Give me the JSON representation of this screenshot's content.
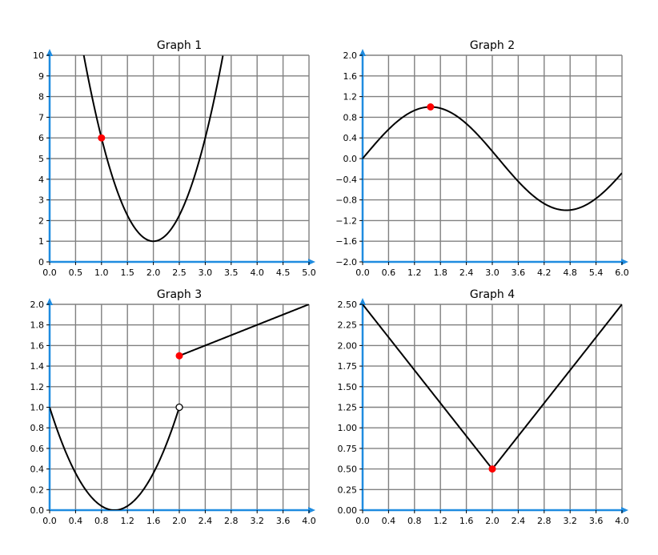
{
  "colors": {
    "axis": "#1f8ce0",
    "grid": "#808080",
    "curve": "#000000",
    "point": "#ff0000"
  },
  "chart_data": [
    {
      "type": "line",
      "title": "Graph 1",
      "xlim": [
        0,
        5
      ],
      "ylim": [
        0,
        10
      ],
      "xticks": [
        "0.0",
        "0.5",
        "1.0",
        "1.5",
        "2.0",
        "2.5",
        "3.0",
        "3.5",
        "4.0",
        "4.5",
        "5.0"
      ],
      "yticks": [
        "0",
        "1",
        "2",
        "3",
        "4",
        "5",
        "6",
        "7",
        "8",
        "9",
        "10"
      ],
      "grid": true,
      "series": [
        {
          "curve": "5*(x-2)^2+1",
          "x": [
            0.6,
            0.8,
            1.0,
            1.2,
            1.4,
            1.6,
            1.8,
            2.0,
            2.2,
            2.4,
            2.6,
            2.8,
            3.0,
            3.2,
            3.34
          ],
          "y": [
            10.8,
            8.2,
            6.0,
            4.2,
            2.8,
            1.8,
            1.2,
            1.0,
            1.2,
            1.8,
            2.8,
            4.2,
            6.0,
            8.2,
            10.0
          ]
        }
      ],
      "points": [
        {
          "x": 1.0,
          "y": 6.0,
          "style": "filled"
        }
      ]
    },
    {
      "type": "line",
      "title": "Graph 2",
      "xlim": [
        0,
        6
      ],
      "ylim": [
        -2,
        2
      ],
      "xticks": [
        "0.0",
        "0.6",
        "1.2",
        "1.8",
        "2.4",
        "3.0",
        "3.6",
        "4.2",
        "4.8",
        "5.4",
        "6.0"
      ],
      "yticks": [
        "−2.0",
        "−1.6",
        "−1.2",
        "−0.8",
        "−0.4",
        "0.0",
        "0.4",
        "0.8",
        "1.2",
        "1.6",
        "2.0"
      ],
      "grid": true,
      "series": [
        {
          "curve": "sin(x)",
          "x": [
            0,
            0.6,
            1.2,
            1.57,
            1.8,
            2.4,
            3.0,
            3.6,
            4.2,
            4.71,
            5.4,
            6.0
          ],
          "y": [
            0,
            0.565,
            0.932,
            1.0,
            0.974,
            0.675,
            0.141,
            -0.443,
            -0.872,
            -1.0,
            -0.773,
            -0.279
          ]
        }
      ],
      "points": [
        {
          "x": 1.571,
          "y": 1.0,
          "style": "filled"
        }
      ]
    },
    {
      "type": "line",
      "title": "Graph 3",
      "xlim": [
        0,
        4
      ],
      "ylim": [
        0,
        2
      ],
      "xticks": [
        "0.0",
        "0.4",
        "0.8",
        "1.2",
        "1.6",
        "2.0",
        "2.4",
        "2.8",
        "3.2",
        "3.6",
        "4.0"
      ],
      "yticks": [
        "0.0",
        "0.2",
        "0.4",
        "0.6",
        "0.8",
        "1.0",
        "1.2",
        "1.4",
        "1.6",
        "1.8",
        "2.0"
      ],
      "grid": true,
      "series": [
        {
          "curve": "(x-1)^2 for x<2",
          "x": [
            0,
            0.2,
            0.4,
            0.6,
            0.8,
            1.0,
            1.2,
            1.4,
            1.6,
            1.8,
            2.0
          ],
          "y": [
            1.0,
            0.64,
            0.36,
            0.16,
            0.04,
            0.0,
            0.04,
            0.16,
            0.36,
            0.64,
            1.0
          ]
        },
        {
          "curve": "0.25*x+1 for x>=2",
          "x": [
            2.0,
            4.0
          ],
          "y": [
            1.5,
            2.0
          ]
        }
      ],
      "points": [
        {
          "x": 2.0,
          "y": 1.0,
          "style": "open"
        },
        {
          "x": 2.0,
          "y": 1.5,
          "style": "filled"
        }
      ]
    },
    {
      "type": "line",
      "title": "Graph 4",
      "xlim": [
        0,
        4
      ],
      "ylim": [
        0,
        2.5
      ],
      "xticks": [
        "0.0",
        "0.4",
        "0.8",
        "1.2",
        "1.6",
        "2.0",
        "2.4",
        "2.8",
        "3.2",
        "3.6",
        "4.0"
      ],
      "yticks": [
        "0.00",
        "0.25",
        "0.50",
        "0.75",
        "1.00",
        "1.25",
        "1.50",
        "1.75",
        "2.00",
        "2.25",
        "2.50"
      ],
      "grid": true,
      "series": [
        {
          "curve": "|x-2|+0.5",
          "x": [
            0,
            2.0,
            4.0
          ],
          "y": [
            2.5,
            0.5,
            2.5
          ]
        }
      ],
      "points": [
        {
          "x": 2.0,
          "y": 0.5,
          "style": "filled"
        }
      ]
    }
  ]
}
